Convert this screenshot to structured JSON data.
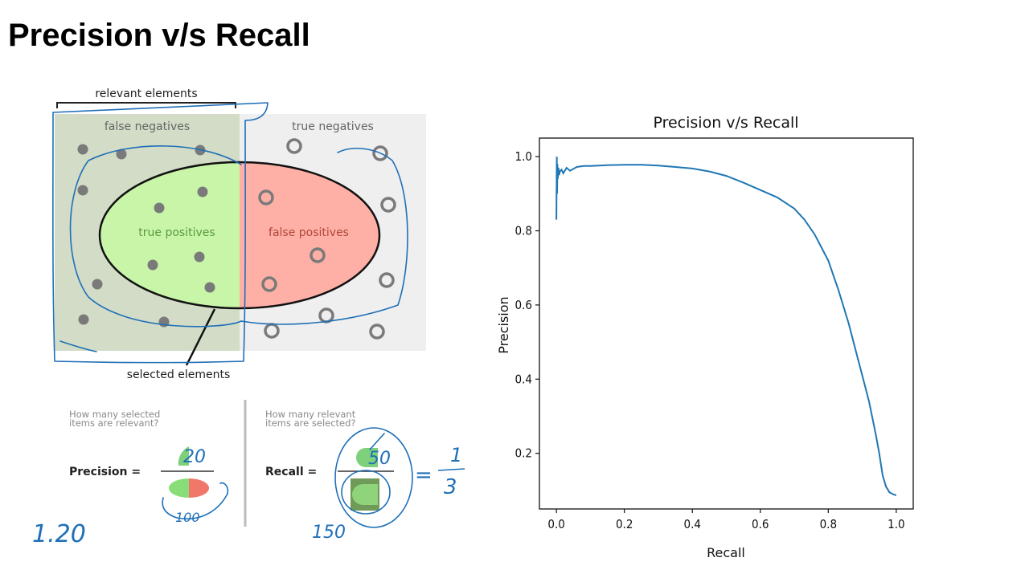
{
  "slide": {
    "title": "Precision v/s Recall"
  },
  "diagram": {
    "relevant_label": "relevant elements",
    "false_negatives": "false negatives",
    "true_negatives": "true negatives",
    "true_positives": "true positives",
    "false_positives": "false positives",
    "selected_label": "selected elements",
    "precision_question_1": "How many selected",
    "precision_question_2": "items are relevant?",
    "recall_question_1": "How many relevant",
    "recall_question_2": "items are selected?",
    "precision_label": "Precision =",
    "recall_label": "Recall =",
    "colors": {
      "fn_bg": "#d2dcc6",
      "tn_bg": "#efefef",
      "tp_fill": "#c8f5a8",
      "fp_fill": "#ffb0a6",
      "dot": "#7a7a7a"
    }
  },
  "annotations": {
    "precision_numerator": "20",
    "precision_denominator": "100",
    "recall_numerator": "50",
    "recall_denominator": "150",
    "result_numerator": "1",
    "result_denominator": "3",
    "side_note": "1.20"
  },
  "chart_data": {
    "type": "line",
    "title": "Precision v/s Recall",
    "xlabel": "Recall",
    "ylabel": "Precision",
    "xlim": [
      -0.05,
      1.05
    ],
    "ylim": [
      0.05,
      1.05
    ],
    "xticks": [
      "0.0",
      "0.2",
      "0.4",
      "0.6",
      "0.8",
      "1.0"
    ],
    "yticks": [
      "0.2",
      "0.4",
      "0.6",
      "0.8",
      "1.0"
    ],
    "grid": false,
    "color": "#1f77b4",
    "series": [
      {
        "x": [
          0.0,
          0.001,
          0.002,
          0.003,
          0.004,
          0.006,
          0.008,
          0.01,
          0.015,
          0.02,
          0.03,
          0.04,
          0.06,
          0.08,
          0.1,
          0.15,
          0.2,
          0.25,
          0.3,
          0.35,
          0.4,
          0.45,
          0.5,
          0.55,
          0.6,
          0.65,
          0.7,
          0.73,
          0.76,
          0.8,
          0.83,
          0.86,
          0.88,
          0.9,
          0.92,
          0.94,
          0.95,
          0.96,
          0.97,
          0.98,
          0.99,
          0.995,
          1.0
        ],
        "y": [
          0.83,
          1.0,
          0.9,
          0.98,
          0.94,
          0.97,
          0.95,
          0.96,
          0.965,
          0.955,
          0.97,
          0.962,
          0.972,
          0.975,
          0.975,
          0.977,
          0.978,
          0.978,
          0.976,
          0.972,
          0.968,
          0.96,
          0.948,
          0.93,
          0.91,
          0.89,
          0.86,
          0.83,
          0.79,
          0.72,
          0.64,
          0.55,
          0.48,
          0.41,
          0.34,
          0.25,
          0.2,
          0.14,
          0.11,
          0.095,
          0.09,
          0.088,
          0.087
        ]
      }
    ]
  }
}
